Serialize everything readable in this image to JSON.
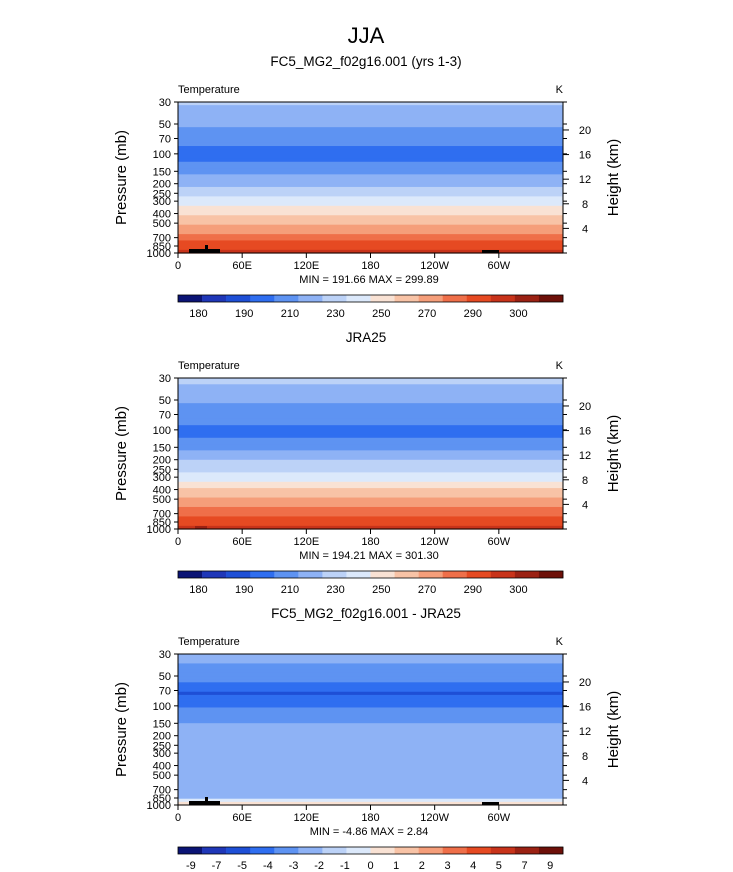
{
  "suptitle": "JJA",
  "chart_data": [
    {
      "type": "heatmap",
      "title": "FC5_MG2_f02g16.001 (yrs 1-3)",
      "left_label": "Temperature",
      "right_label": "K",
      "ylabel": "Pressure (mb)",
      "ylabel_right": "Height (km)",
      "x_ticks": [
        "0",
        "60E",
        "120E",
        "180",
        "120W",
        "60W"
      ],
      "y_ticks": [
        "30",
        "50",
        "70",
        "100",
        "150",
        "200",
        "250",
        "300",
        "400",
        "500",
        "700",
        "850",
        "1000"
      ],
      "height_ticks": [
        "20",
        "16",
        "12",
        "8",
        "4"
      ],
      "stats": "MIN = 191.66   MAX = 299.89",
      "colorbar_labels": [
        "180",
        "190",
        "210",
        "230",
        "250",
        "270",
        "290",
        "300"
      ],
      "profile": [
        {
          "p": 30,
          "v": 221
        },
        {
          "p": 42,
          "v": 215
        },
        {
          "p": 65,
          "v": 205
        },
        {
          "p": 90,
          "v": 199
        },
        {
          "p": 115,
          "v": 198
        },
        {
          "p": 140,
          "v": 205
        },
        {
          "p": 180,
          "v": 214
        },
        {
          "p": 230,
          "v": 222
        },
        {
          "p": 290,
          "v": 232
        },
        {
          "p": 360,
          "v": 244
        },
        {
          "p": 450,
          "v": 255
        },
        {
          "p": 560,
          "v": 264
        },
        {
          "p": 680,
          "v": 274
        },
        {
          "p": 800,
          "v": 282
        },
        {
          "p": 900,
          "v": 288
        },
        {
          "p": 1000,
          "v": 295
        }
      ]
    },
    {
      "type": "heatmap",
      "title": "JRA25",
      "left_label": "Temperature",
      "right_label": "K",
      "ylabel": "Pressure (mb)",
      "ylabel_right": "Height (km)",
      "x_ticks": [
        "0",
        "60E",
        "120E",
        "180",
        "120W",
        "60W"
      ],
      "y_ticks": [
        "30",
        "50",
        "70",
        "100",
        "150",
        "200",
        "250",
        "300",
        "400",
        "500",
        "700",
        "850",
        "1000"
      ],
      "height_ticks": [
        "20",
        "16",
        "12",
        "8",
        "4"
      ],
      "stats": "MIN = 194.21   MAX = 301.30",
      "colorbar_labels": [
        "180",
        "190",
        "210",
        "230",
        "250",
        "270",
        "290",
        "300"
      ],
      "profile": [
        {
          "p": 30,
          "v": 222
        },
        {
          "p": 42,
          "v": 216
        },
        {
          "p": 65,
          "v": 206
        },
        {
          "p": 90,
          "v": 200
        },
        {
          "p": 115,
          "v": 199
        },
        {
          "p": 140,
          "v": 206
        },
        {
          "p": 180,
          "v": 215
        },
        {
          "p": 230,
          "v": 224
        },
        {
          "p": 290,
          "v": 234
        },
        {
          "p": 360,
          "v": 246
        },
        {
          "p": 450,
          "v": 257
        },
        {
          "p": 560,
          "v": 266
        },
        {
          "p": 680,
          "v": 276
        },
        {
          "p": 800,
          "v": 284
        },
        {
          "p": 900,
          "v": 290
        },
        {
          "p": 1000,
          "v": 297
        }
      ]
    },
    {
      "type": "heatmap",
      "title": "FC5_MG2_f02g16.001 - JRA25",
      "left_label": "Temperature",
      "right_label": "K",
      "ylabel": "Pressure (mb)",
      "ylabel_right": "Height (km)",
      "x_ticks": [
        "0",
        "60E",
        "120E",
        "180",
        "120W",
        "60W"
      ],
      "y_ticks": [
        "30",
        "50",
        "70",
        "100",
        "150",
        "200",
        "250",
        "300",
        "400",
        "500",
        "700",
        "850",
        "1000"
      ],
      "height_ticks": [
        "20",
        "16",
        "12",
        "8",
        "4"
      ],
      "stats": "MIN =   -4.86   MAX =    2.84",
      "colorbar_labels": [
        "-9",
        "-7",
        "-5",
        "-4",
        "-3",
        "-2",
        "-1",
        "0",
        "1",
        "2",
        "3",
        "4",
        "5",
        "7",
        "9"
      ],
      "profile": [
        {
          "p": 30,
          "v": -1.6
        },
        {
          "p": 45,
          "v": -2.4
        },
        {
          "p": 60,
          "v": -3.2
        },
        {
          "p": 75,
          "v": -4.1
        },
        {
          "p": 90,
          "v": -3.3
        },
        {
          "p": 120,
          "v": -2.5
        },
        {
          "p": 170,
          "v": -1.6
        },
        {
          "p": 250,
          "v": -1.4
        },
        {
          "p": 350,
          "v": -1.2
        },
        {
          "p": 500,
          "v": -1.1
        },
        {
          "p": 700,
          "v": -1.2
        },
        {
          "p": 850,
          "v": -1.1
        },
        {
          "p": 950,
          "v": 0.4
        }
      ]
    }
  ],
  "colors": {
    "abs_scale": [
      "#0b1475",
      "#1f37b8",
      "#1e4fd6",
      "#2f6ef0",
      "#5e93f2",
      "#8eb2f5",
      "#bcd2f7",
      "#dce9fb",
      "#f9e2d4",
      "#f8c3a6",
      "#f59e7a",
      "#ef6f49",
      "#e64a22",
      "#c8331a",
      "#9b2113",
      "#6d1009"
    ],
    "diff_scale": [
      "#0b1475",
      "#1f37b8",
      "#1e4fd6",
      "#2f6ef0",
      "#5e93f2",
      "#8eb2f5",
      "#bcd2f7",
      "#dce9fb",
      "#f9e2d4",
      "#f8c3a6",
      "#f59e7a",
      "#ef6f49",
      "#e64a22",
      "#c8331a",
      "#9b2113",
      "#6d1009"
    ]
  }
}
